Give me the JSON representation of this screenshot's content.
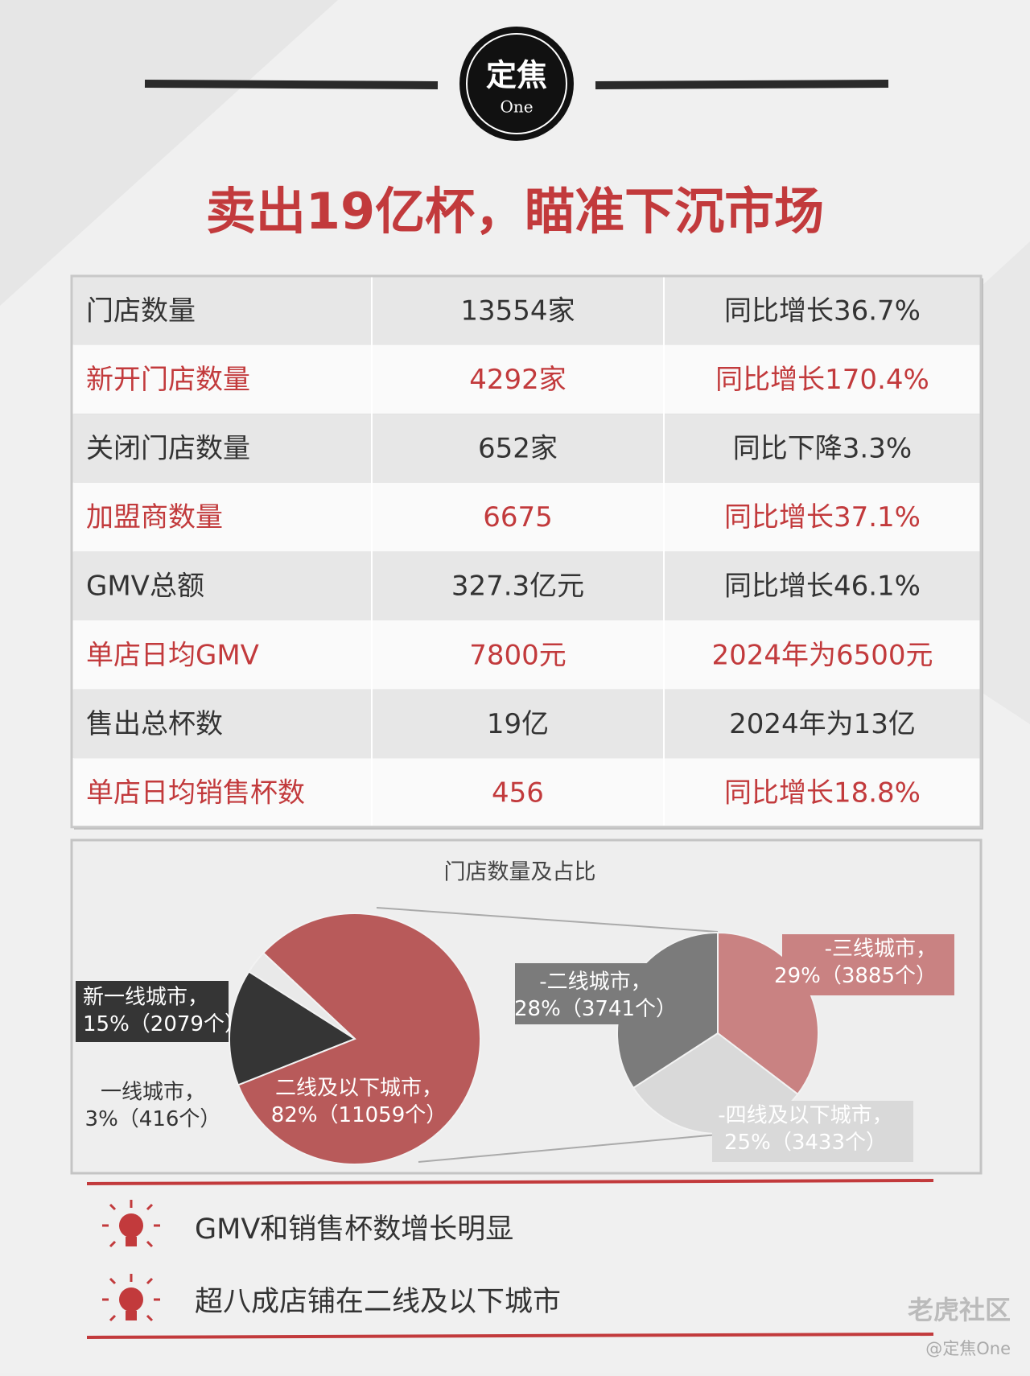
{
  "logo": {
    "main": "定焦",
    "sub": "One"
  },
  "header": {
    "title": "卖出19亿杯，瞄准下沉市场"
  },
  "table": {
    "rows": [
      [
        "门店数量",
        "13554家",
        "同比增长36.7%"
      ],
      [
        "新开门店数量",
        "4292家",
        "同比增长170.4%"
      ],
      [
        "关闭门店数量",
        "652家",
        "同比下降3.3%"
      ],
      [
        "加盟商数量",
        "6675",
        "同比增长37.1%"
      ],
      [
        "GMV总额",
        "327.3亿元",
        "同比增长46.1%"
      ],
      [
        "单店日均GMV",
        "7800元",
        "2024年为6500元"
      ],
      [
        "售出总杯数",
        "19亿",
        "2024年为13亿"
      ],
      [
        "单店日均销售杯数",
        "456",
        "同比增长18.8%"
      ]
    ]
  },
  "chart_data": [
    {
      "type": "pie",
      "title": "门店数量及占比",
      "categories": [
        "新一线城市，",
        "一线城市，",
        "二线及以下城市，"
      ],
      "values": [
        15,
        3,
        82
      ],
      "value_labels": [
        "15%",
        "3%",
        "82%"
      ],
      "counts": [
        2079,
        416,
        11059
      ],
      "count_labels": [
        "（2079个）",
        "（416个）",
        "（11059个）"
      ],
      "colors": [
        "#353535",
        "#e9e9e9",
        "#b85a5a"
      ]
    },
    {
      "type": "pie",
      "categories": [
        "-三线城市，",
        "-四线及以下城市，",
        "-二线城市，"
      ],
      "values": [
        29,
        25,
        28
      ],
      "value_labels": [
        "29%",
        "25%",
        "28%"
      ],
      "counts": [
        3885,
        3433,
        3741
      ],
      "count_labels": [
        "（3885个）",
        "（3433个）",
        "（3741个）"
      ],
      "colors": [
        "#c98282",
        "#d9d9d9",
        "#7b7b7b"
      ]
    }
  ],
  "notes": [
    "GMV和销售杯数增长明显",
    "超八成店铺在二线及以下城市"
  ],
  "watermark": {
    "site": "老虎社区",
    "author": "@定焦One"
  }
}
